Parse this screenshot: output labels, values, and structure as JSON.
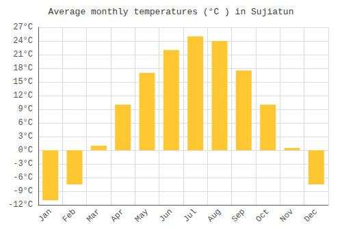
{
  "chart_data": {
    "type": "bar",
    "title": "Average monthly temperatures (°C ) in Sujiatun",
    "categories": [
      "Jan",
      "Feb",
      "Mar",
      "Apr",
      "May",
      "Jun",
      "Jul",
      "Aug",
      "Sep",
      "Oct",
      "Nov",
      "Dec"
    ],
    "values": [
      -11,
      -7.5,
      1,
      10,
      17,
      22,
      25,
      24,
      17.5,
      10,
      0.5,
      -7.5
    ],
    "color": "#FFC832",
    "ylim": [
      -12,
      27
    ],
    "yticks": [
      {
        "value": -12,
        "label": "-12°C"
      },
      {
        "value": -9,
        "label": "-9°C"
      },
      {
        "value": -6,
        "label": "-6°C"
      },
      {
        "value": -3,
        "label": "-3°C"
      },
      {
        "value": 0,
        "label": "0°C"
      },
      {
        "value": 3,
        "label": "3°C"
      },
      {
        "value": 6,
        "label": "6°C"
      },
      {
        "value": 9,
        "label": "9°C"
      },
      {
        "value": 12,
        "label": "12°C"
      },
      {
        "value": 15,
        "label": "15°C"
      },
      {
        "value": 18,
        "label": "18°C"
      },
      {
        "value": 21,
        "label": "21°C"
      },
      {
        "value": 24,
        "label": "24°C"
      },
      {
        "value": 27,
        "label": "27°C"
      }
    ],
    "grid": true
  }
}
